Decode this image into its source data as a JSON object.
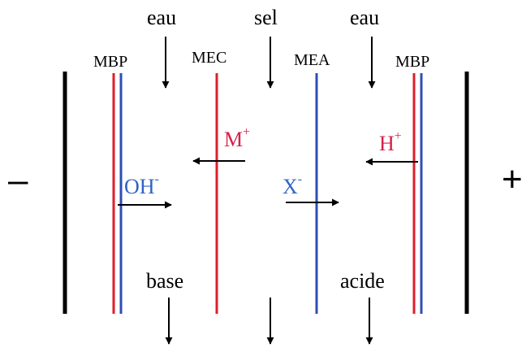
{
  "colors": {
    "black": "#000000",
    "cation_red": "#e11d2a",
    "anion_blue": "#2f4eb4",
    "ion_red_text": "#d8204a",
    "ion_blue_text": "#2f63c4"
  },
  "electrodes": {
    "negative": "–",
    "positive": "+"
  },
  "membranes": {
    "left_bipolar": "MBP",
    "cation_exchange": "MEC",
    "anion_exchange": "MEA",
    "right_bipolar": "MBP"
  },
  "inputs": {
    "left": "eau",
    "middle": "sel",
    "right": "eau"
  },
  "outputs": {
    "left": "base",
    "right": "acide"
  },
  "ions": {
    "oh": {
      "base": "OH",
      "charge": "-"
    },
    "m": {
      "base": "M",
      "charge": "+"
    },
    "x": {
      "base": "X",
      "charge": "-"
    },
    "h": {
      "base": "H",
      "charge": "+"
    }
  }
}
